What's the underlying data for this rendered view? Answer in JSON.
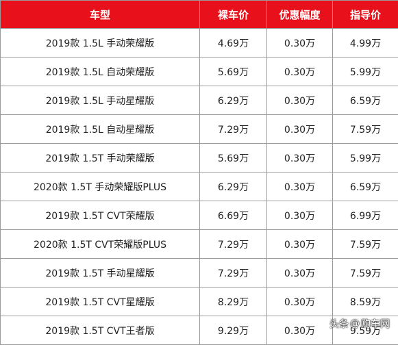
{
  "table": {
    "headers": [
      "车型",
      "裸车价",
      "优惠幅度",
      "指导价"
    ],
    "rows": [
      [
        "2019款 1.5L 手动荣耀版",
        "4.69万",
        "0.30万",
        "4.99万"
      ],
      [
        "2019款 1.5L 自动荣耀版",
        "5.69万",
        "0.30万",
        "5.99万"
      ],
      [
        "2019款 1.5L 手动星耀版",
        "6.29万",
        "0.30万",
        "6.59万"
      ],
      [
        "2019款 1.5L 自动星耀版",
        "7.29万",
        "0.30万",
        "7.59万"
      ],
      [
        "2019款 1.5T 手动荣耀版",
        "5.69万",
        "0.30万",
        "5.99万"
      ],
      [
        "2020款 1.5T 手动荣耀版PLUS",
        "6.29万",
        "0.30万",
        "6.59万"
      ],
      [
        "2019款 1.5T CVT荣耀版",
        "6.69万",
        "0.30万",
        "6.99万"
      ],
      [
        "2020款 1.5T CVT荣耀版PLUS",
        "7.29万",
        "0.30万",
        "7.59万"
      ],
      [
        "2019款 1.5T 手动星耀版",
        "7.29万",
        "0.30万",
        "7.59万"
      ],
      [
        "2019款 1.5T CVT星耀版",
        "8.29万",
        "0.30万",
        "8.59万"
      ],
      [
        "2019款 1.5T CVT王者版",
        "9.29万",
        "0.30万",
        "9.59万"
      ]
    ]
  },
  "watermark": {
    "source": "头条",
    "at": "@",
    "name": "购车网"
  },
  "colors": {
    "header_bg": "#e8111b",
    "header_text": "#ffffff",
    "border": "#9a9a9a",
    "cell_text": "#222222"
  }
}
